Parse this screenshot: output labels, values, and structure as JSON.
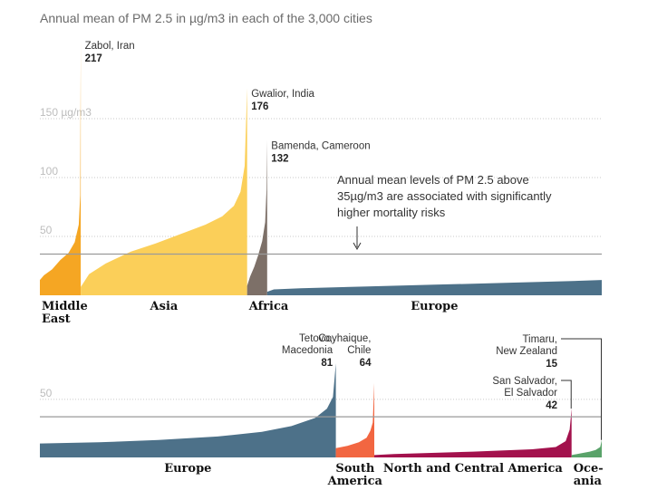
{
  "chart_data": {
    "type": "area",
    "title": "Annual mean of PM 2.5 in µg/m3 in each of the 3,000 cities",
    "unit_tick_label": "150 µg/m3",
    "threshold": 35,
    "note": [
      "Annual mean levels of PM 2.5 above",
      "35µg/m3 are associated with significantly",
      "higher mortality risks"
    ],
    "panels": [
      {
        "name": "top",
        "ylim": [
          0,
          220
        ],
        "yticks": [
          {
            "value": 50,
            "label": "50"
          },
          {
            "value": 100,
            "label": "100"
          },
          {
            "value": 150,
            "label": "150 µg/m3"
          }
        ],
        "series": [
          {
            "region": "Middle East",
            "label_lines": [
              "Middle",
              "East"
            ],
            "color": "#f5a623",
            "share": 45,
            "min": 13,
            "max": 217,
            "points": [
              [
                0,
                13
              ],
              [
                0.1,
                17
              ],
              [
                0.3,
                22
              ],
              [
                0.5,
                30
              ],
              [
                0.7,
                36
              ],
              [
                0.85,
                45
              ],
              [
                0.95,
                60
              ],
              [
                0.985,
                85
              ],
              [
                1,
                217
              ]
            ]
          },
          {
            "region": "Asia",
            "label_lines": [
              "Asia"
            ],
            "color": "#fbcf59",
            "share": 183,
            "min": 7,
            "max": 176,
            "points": [
              [
                0,
                7
              ],
              [
                0.05,
                18
              ],
              [
                0.15,
                27
              ],
              [
                0.3,
                37
              ],
              [
                0.45,
                44
              ],
              [
                0.6,
                52
              ],
              [
                0.75,
                60
              ],
              [
                0.85,
                67
              ],
              [
                0.92,
                76
              ],
              [
                0.96,
                88
              ],
              [
                0.985,
                110
              ],
              [
                1,
                176
              ]
            ]
          },
          {
            "region": "Africa",
            "label_lines": [
              "Africa"
            ],
            "color": "#7d7068",
            "share": 22,
            "min": 8,
            "max": 132,
            "points": [
              [
                0,
                8
              ],
              [
                0.15,
                16
              ],
              [
                0.35,
                24
              ],
              [
                0.55,
                34
              ],
              [
                0.75,
                46
              ],
              [
                0.9,
                62
              ],
              [
                0.97,
                90
              ],
              [
                1,
                132
              ]
            ]
          },
          {
            "region": "Europe",
            "label_lines": [
              "Europe"
            ],
            "color": "#4d7189",
            "share": 368,
            "min": 3,
            "max": 13,
            "points": [
              [
                0,
                3
              ],
              [
                0.02,
                5
              ],
              [
                0.1,
                6
              ],
              [
                0.3,
                7.5
              ],
              [
                0.5,
                9
              ],
              [
                0.7,
                10.5
              ],
              [
                0.9,
                12
              ],
              [
                1,
                13
              ]
            ]
          }
        ],
        "annotations": [
          {
            "region": "Middle East",
            "lines": [
              "Zabol, Iran"
            ],
            "value": "217"
          },
          {
            "region": "Asia",
            "lines": [
              "Gwalior, India"
            ],
            "value": "176"
          },
          {
            "region": "Africa",
            "lines": [
              "Bamenda, Cameroon"
            ],
            "value": "132"
          }
        ]
      },
      {
        "name": "bottom",
        "ylim": [
          0,
          85
        ],
        "yticks": [
          {
            "value": 50,
            "label": "50"
          }
        ],
        "series": [
          {
            "region": "Europe",
            "label_lines": [
              "Europe"
            ],
            "color": "#4d7189",
            "share": 324,
            "min": 12,
            "max": 81,
            "points": [
              [
                0,
                12
              ],
              [
                0.2,
                13
              ],
              [
                0.4,
                15
              ],
              [
                0.6,
                18
              ],
              [
                0.75,
                22
              ],
              [
                0.85,
                27
              ],
              [
                0.93,
                34
              ],
              [
                0.97,
                42
              ],
              [
                0.99,
                52
              ],
              [
                1,
                81
              ]
            ]
          },
          {
            "region": "South America",
            "label_lines": [
              "South",
              "America"
            ],
            "color": "#f26641",
            "share": 42,
            "min": 8,
            "max": 64,
            "points": [
              [
                0,
                8
              ],
              [
                0.3,
                10
              ],
              [
                0.6,
                13
              ],
              [
                0.8,
                17
              ],
              [
                0.9,
                23
              ],
              [
                0.96,
                30
              ],
              [
                1,
                64
              ]
            ]
          },
          {
            "region": "North and Central America",
            "label_lines": [
              "North and Central America"
            ],
            "color": "#a3124d",
            "share": 216,
            "min": 2,
            "max": 42,
            "points": [
              [
                0,
                2
              ],
              [
                0.1,
                3
              ],
              [
                0.5,
                5
              ],
              [
                0.8,
                7
              ],
              [
                0.92,
                9
              ],
              [
                0.97,
                14
              ],
              [
                0.99,
                24
              ],
              [
                1,
                42
              ]
            ]
          },
          {
            "region": "Oceania",
            "label_lines": [
              "Oce-",
              "ania"
            ],
            "color": "#5aa36a",
            "share": 33,
            "min": 2,
            "max": 15,
            "points": [
              [
                0,
                2
              ],
              [
                0.3,
                3.5
              ],
              [
                0.6,
                5
              ],
              [
                0.8,
                6.5
              ],
              [
                0.95,
                9
              ],
              [
                1,
                15
              ]
            ]
          }
        ],
        "annotations": [
          {
            "region": "Europe",
            "lines": [
              "Tetovo,",
              "Macedonia"
            ],
            "value": "81"
          },
          {
            "region": "South America",
            "lines": [
              "Coyhaique,",
              "Chile"
            ],
            "value": "64"
          },
          {
            "region": "North and Central America",
            "lines": [
              "San Salvador,",
              "El Salvador"
            ],
            "value": "42"
          },
          {
            "region": "Oceania",
            "lines": [
              "Timaru,",
              "New Zealand"
            ],
            "value": "15"
          }
        ]
      }
    ]
  }
}
